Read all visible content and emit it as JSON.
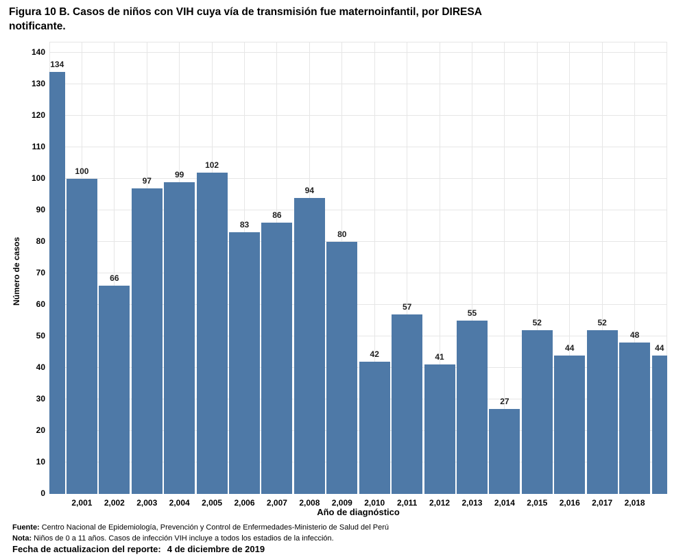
{
  "figure": {
    "title_line1": "Figura 10 B. Casos de niños con VIH cuya vía de transmisión fue maternoinfantil, por DIRESA",
    "title_line2": "notificante."
  },
  "chart_data": {
    "type": "bar",
    "title": "Figura 10 B. Casos de niños con VIH cuya vía de transmisión fue maternoinfantil, por DIRESA notificante.",
    "xlabel": "Año de diagnóstico",
    "ylabel": "Número de casos",
    "ylim": [
      0,
      140
    ],
    "y_tick_interval": 10,
    "y_tick_labels": [
      "0",
      "10",
      "20",
      "30",
      "40",
      "50",
      "60",
      "70",
      "80",
      "90",
      "100",
      "110",
      "120",
      "130",
      "140"
    ],
    "grid": "on",
    "bar_color": "#4e79a7",
    "gridline_color": "#e6e6e6",
    "label_color": "#1e1e1e",
    "bars": [
      {
        "tick_label": "",
        "value": 134
      },
      {
        "tick_label": "2,001",
        "value": 100
      },
      {
        "tick_label": "2,002",
        "value": 66
      },
      {
        "tick_label": "2,003",
        "value": 97
      },
      {
        "tick_label": "2,004",
        "value": 99
      },
      {
        "tick_label": "2,005",
        "value": 102
      },
      {
        "tick_label": "2,006",
        "value": 83
      },
      {
        "tick_label": "2,007",
        "value": 86
      },
      {
        "tick_label": "2,008",
        "value": 94
      },
      {
        "tick_label": "2,009",
        "value": 80
      },
      {
        "tick_label": "2,010",
        "value": 42
      },
      {
        "tick_label": "2,011",
        "value": 57
      },
      {
        "tick_label": "2,012",
        "value": 41
      },
      {
        "tick_label": "2,013",
        "value": 55
      },
      {
        "tick_label": "2,014",
        "value": 27
      },
      {
        "tick_label": "2,015",
        "value": 52
      },
      {
        "tick_label": "2,016",
        "value": 44
      },
      {
        "tick_label": "2,017",
        "value": 52
      },
      {
        "tick_label": "2,018",
        "value": 48
      },
      {
        "tick_label": "",
        "value": 44
      }
    ]
  },
  "footer": {
    "fuente_label": "Fuente:",
    "fuente_text": "Centro Nacional de Epidemiología, Prevención y Control de Enfermedades-Ministerio de Salud del Perú",
    "nota_label": "Nota:",
    "nota_text": "Niños de 0 a 11 años. Casos de infección VIH incluye a todos los estadios de la infección.",
    "fecha_label": "Fecha de actualizacion del reporte:",
    "fecha_value": "4 de diciembre de 2019"
  }
}
